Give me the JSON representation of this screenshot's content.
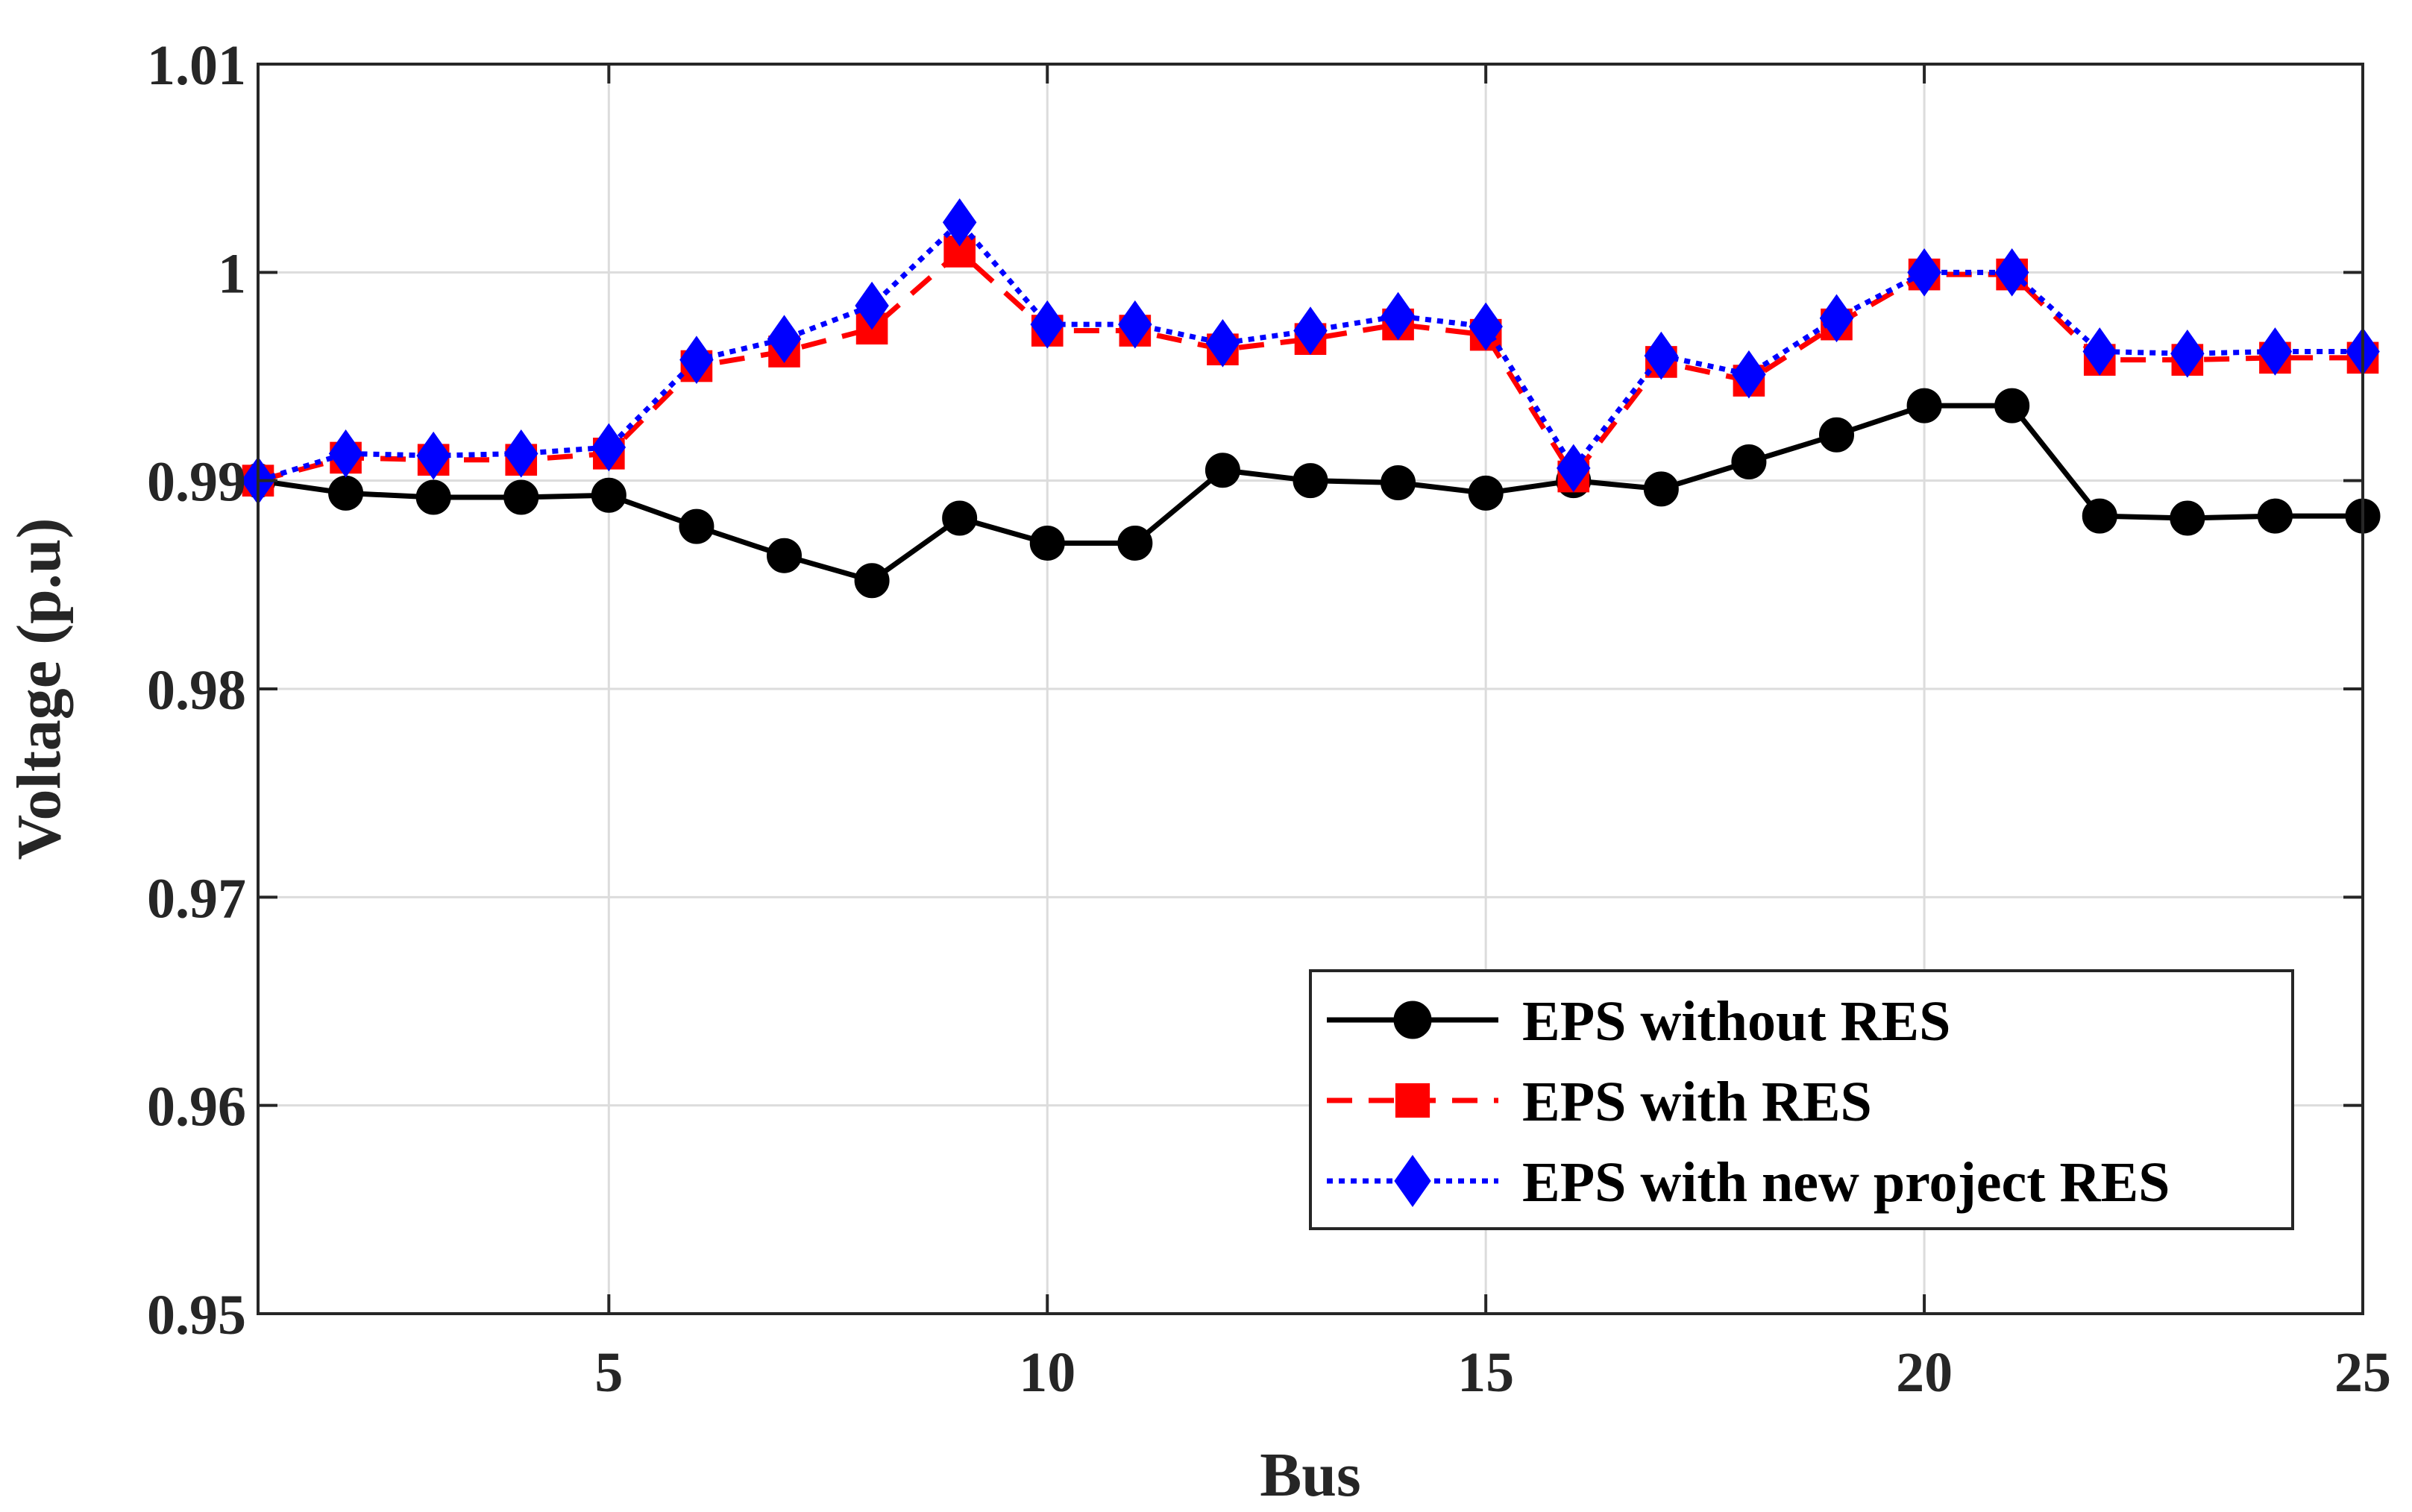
{
  "chart_data": {
    "type": "line",
    "xlabel": "Bus",
    "ylabel": "Voltage (p.u)",
    "xlim": [
      1,
      25
    ],
    "ylim": [
      0.95,
      1.01
    ],
    "xticks": [
      5,
      10,
      15,
      20,
      25
    ],
    "yticks": [
      0.95,
      0.96,
      0.97,
      0.98,
      0.99,
      1,
      1.01
    ],
    "ytick_labels": [
      "0.95",
      "0.96",
      "0.97",
      "0.98",
      "0.99",
      "1",
      "1.01"
    ],
    "grid": true,
    "legend_position": "bottom-right",
    "x": [
      1,
      2,
      3,
      4,
      5,
      6,
      7,
      8,
      9,
      10,
      11,
      12,
      13,
      14,
      15,
      16,
      17,
      18,
      19,
      20,
      21,
      22,
      23,
      24,
      25
    ],
    "series": [
      {
        "name": "EPS without RES",
        "color": "#000000",
        "line_style": "solid",
        "marker": "circle",
        "values": [
          0.99,
          0.9894,
          0.9892,
          0.9892,
          0.9893,
          0.9878,
          0.9864,
          0.9852,
          0.9882,
          0.987,
          0.987,
          0.9905,
          0.99,
          0.9899,
          0.9894,
          0.99,
          0.9896,
          0.9909,
          0.9922,
          0.9936,
          0.9936,
          0.9883,
          0.9882,
          0.9883,
          0.9883
        ]
      },
      {
        "name": "EPS with RES",
        "color": "#ff0000",
        "line_style": "dashed",
        "marker": "square",
        "values": [
          0.99,
          0.9911,
          0.991,
          0.991,
          0.9913,
          0.9955,
          0.9962,
          0.9973,
          1.001,
          0.9972,
          0.9972,
          0.9963,
          0.9968,
          0.9975,
          0.997,
          0.9902,
          0.9957,
          0.9948,
          0.9975,
          0.9999,
          0.9999,
          0.9958,
          0.9958,
          0.9959,
          0.9959
        ]
      },
      {
        "name": "EPS with new project RES",
        "color": "#0000ff",
        "line_style": "dotted",
        "marker": "diamond",
        "values": [
          0.99,
          0.9913,
          0.9912,
          0.9913,
          0.9916,
          0.9958,
          0.9968,
          0.9984,
          1.0024,
          0.9975,
          0.9975,
          0.9966,
          0.9972,
          0.9979,
          0.9974,
          0.9906,
          0.996,
          0.9951,
          0.9978,
          1.0,
          1.0,
          0.9962,
          0.9961,
          0.9962,
          0.9962
        ]
      }
    ]
  }
}
